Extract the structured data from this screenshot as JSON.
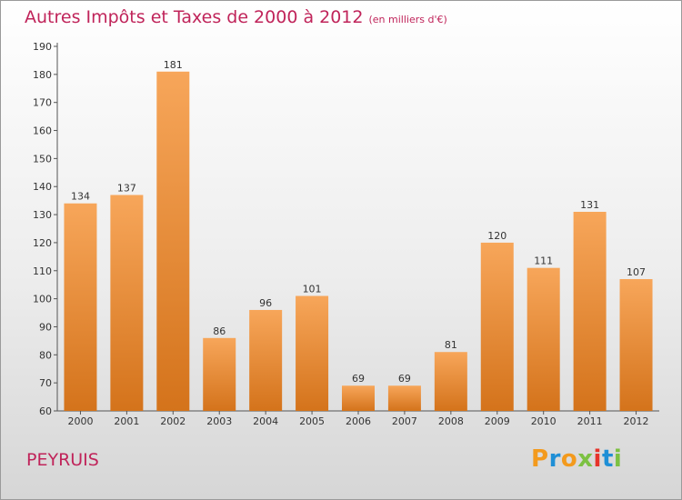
{
  "title": "Autres Impôts et Taxes de 2000 à 2012",
  "subtitle": "(en milliers d'€)",
  "town": "PEYRUIS",
  "logo": {
    "text": "Proxiti",
    "colors": [
      "#f39a1d",
      "#1f8fd6",
      "#7cc142",
      "#e6342b"
    ]
  },
  "colors": {
    "bar_top": "#f7a65a",
    "bar_bottom": "#d4731b",
    "title": "#c0245a"
  },
  "chart_data": {
    "type": "bar",
    "title": "Autres Impôts et Taxes de 2000 à 2012",
    "subtitle": "(en milliers d'€)",
    "xlabel": "",
    "ylabel": "",
    "categories": [
      "2000",
      "2001",
      "2002",
      "2003",
      "2004",
      "2005",
      "2006",
      "2007",
      "2008",
      "2009",
      "2010",
      "2011",
      "2012"
    ],
    "values": [
      134,
      137,
      181,
      86,
      96,
      101,
      69,
      69,
      81,
      120,
      111,
      131,
      107
    ],
    "ylim": [
      60,
      190
    ],
    "yticks": [
      60,
      70,
      80,
      90,
      100,
      110,
      120,
      130,
      140,
      150,
      160,
      170,
      180,
      190
    ],
    "grid": false,
    "data_labels": true
  }
}
